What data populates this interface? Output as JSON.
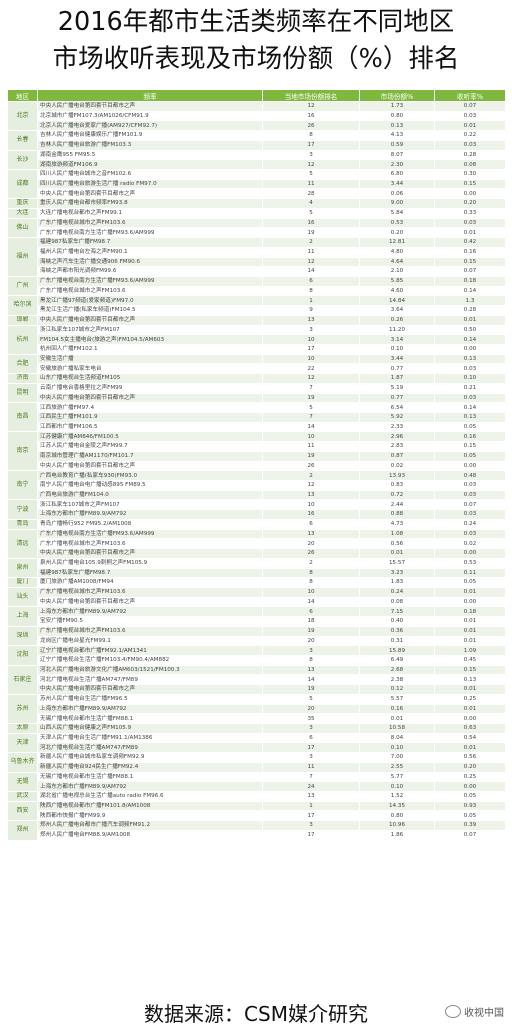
{
  "title": {
    "line1": "2016年都市生活类频率在不同地区",
    "line2": "市场收听表现及市场份额（%）排名"
  },
  "table": {
    "headers": [
      "地区",
      "频率",
      "当地市场份额排名",
      "市场份额%",
      "收听率%"
    ],
    "groups": [
      {
        "region": "北京",
        "rows": [
          [
            "中央人民广播电台第四套节目都市之声",
            "12",
            "1.73",
            "0.07"
          ],
          [
            "北京城市广播FM107.3/AM1026/CFM91.9",
            "16",
            "0.80",
            "0.03"
          ],
          [
            "北京人民广播电台爱家广播(AM927/CFM92.7)",
            "26",
            "0.13",
            "0.01"
          ]
        ]
      },
      {
        "region": "长春",
        "rows": [
          [
            "吉林人民广播电台健康娱乐广播FM101.9",
            "8",
            "4.13",
            "0.22"
          ],
          [
            "吉林人民广播电台旅游广播FM103.3",
            "17",
            "0.59",
            "0.03"
          ]
        ]
      },
      {
        "region": "长沙",
        "rows": [
          [
            "湖南金鹰955 FM95.5",
            "3",
            "8.07",
            "0.28"
          ],
          [
            "湖南旅游频道FM106.9",
            "12",
            "2.30",
            "0.08"
          ]
        ]
      },
      {
        "region": "成都",
        "rows": [
          [
            "四川人民广播电台城市之音FM102.6",
            "5",
            "6.80",
            "0.30"
          ],
          [
            "四川人民广播电台旅游生活广播 radio FM97.0",
            "11",
            "3.44",
            "0.15"
          ],
          [
            "中央人民广播电台第四套节目都市之声",
            "28",
            "0.06",
            "0.00"
          ]
        ]
      },
      {
        "region": "重庆",
        "rows": [
          [
            "重庆人民广播电台都市频率FM93.8",
            "4",
            "9.00",
            "0.20"
          ]
        ]
      },
      {
        "region": "大连",
        "rows": [
          [
            "大连广播电视台都市之声FM99.1",
            "5",
            "5.84",
            "0.33"
          ]
        ]
      },
      {
        "region": "佛山",
        "rows": [
          [
            "广东广播电视台城市之声FM103.6",
            "16",
            "0.53",
            "0.03"
          ],
          [
            "广东广播电视台南方生活广播FM93.6/AM999",
            "19",
            "0.20",
            "0.01"
          ]
        ]
      },
      {
        "region": "福州",
        "rows": [
          [
            "福建987私家车广播FM98.7",
            "2",
            "12.81",
            "0.42"
          ],
          [
            "福州人民广播电台左海之声FM90.1",
            "11",
            "4.80",
            "0.16"
          ],
          [
            "海峡之声汽车生活广播交通906 FM90.6",
            "12",
            "4.64",
            "0.15"
          ],
          [
            "海峡之声都市阳光调频FM99.6",
            "14",
            "2.10",
            "0.07"
          ]
        ]
      },
      {
        "region": "广州",
        "rows": [
          [
            "广东广播电视台南方生活广播FM93.6/AM999",
            "6",
            "5.85",
            "0.18"
          ],
          [
            "广东广播电视台城市之声FM103.6",
            "8",
            "4.60",
            "0.14"
          ]
        ]
      },
      {
        "region": "哈尔滨",
        "rows": [
          [
            "黑龙江广播97频道(爱家频道)FM97.0",
            "1",
            "14.84",
            "1.3"
          ],
          [
            "黑龙江生活广播(私家车频道)FM104.5",
            "9",
            "3.64",
            "0.28"
          ]
        ]
      },
      {
        "region": "邯郸",
        "rows": [
          [
            "中央人民广播电台第四套节目都市之声",
            "13",
            "0.26",
            "0.01"
          ]
        ]
      },
      {
        "region": "杭州",
        "rows": [
          [
            "浙江私家车107城市之声FM107",
            "3",
            "11.20",
            "0.50"
          ],
          [
            "FM104.5女主播电台(旅游之声)FM104.5/AM603",
            "10",
            "3.14",
            "0.14"
          ],
          [
            "杭州回人广播FM102.1",
            "17",
            "0.10",
            "0.00"
          ]
        ]
      },
      {
        "region": "合肥",
        "rows": [
          [
            "安徽生活广播",
            "10",
            "3.44",
            "0.13"
          ],
          [
            "安徽旅游广播私家车电台",
            "22",
            "0.77",
            "0.03"
          ]
        ]
      },
      {
        "region": "济南",
        "rows": [
          [
            "山东广播电视台生活频道FM105",
            "12",
            "1.87",
            "0.10"
          ]
        ]
      },
      {
        "region": "昆明",
        "rows": [
          [
            "云南广播电台香格里拉之声FM99",
            "7",
            "5.19",
            "0.21"
          ],
          [
            "中央人民广播电台第四套节目都市之声",
            "19",
            "0.77",
            "0.03"
          ]
        ]
      },
      {
        "region": "南昌",
        "rows": [
          [
            "江西旅游广播FM97.4",
            "5",
            "6.54",
            "0.14"
          ],
          [
            "江西民生广播FM101.9",
            "7",
            "5.92",
            "0.13"
          ],
          [
            "江西都市广播FM106.5",
            "14",
            "2.33",
            "0.05"
          ]
        ]
      },
      {
        "region": "南京",
        "rows": [
          [
            "江苏健康广播AM846/FM100.5",
            "10",
            "2.96",
            "0.16"
          ],
          [
            "江苏人民广播电台金陵之声FM99.7",
            "11",
            "2.83",
            "0.15"
          ],
          [
            "南京城市管理广播AM1170/FM101.7",
            "19",
            "0.87",
            "0.05"
          ],
          [
            "中央人民广播电台第四套节目都市之声",
            "26",
            "0.02",
            "0.00"
          ]
        ]
      },
      {
        "region": "南宁",
        "rows": [
          [
            "广西电台教育广播(私家车930)FM93.0",
            "2",
            "13.93",
            "0.48"
          ],
          [
            "南宁人民广播电台电广播动感895 FM89.5",
            "12",
            "0.83",
            "0.03"
          ],
          [
            "广西电台旅游广播FM104.0",
            "13",
            "0.72",
            "0.03"
          ]
        ]
      },
      {
        "region": "宁波",
        "rows": [
          [
            "浙江私家车107城市之声FM107",
            "10",
            "2.44",
            "0.07"
          ],
          [
            "上海东方都市广播FM89.9/AM792",
            "16",
            "0.88",
            "0.03"
          ]
        ]
      },
      {
        "region": "青岛",
        "rows": [
          [
            "青岛广播畅行952 FM95.2/AM1008",
            "6",
            "4.73",
            "0.24"
          ]
        ]
      },
      {
        "region": "清远",
        "rows": [
          [
            "广东广播电视台南方生活广播FM93.6/AM999",
            "13",
            "1.08",
            "0.03"
          ],
          [
            "广东广播电视台城市之声FM103.6",
            "20",
            "0.56",
            "0.02"
          ],
          [
            "中央人民广播电台第四套节目都市之声",
            "26",
            "0.01",
            "0.00"
          ]
        ]
      },
      {
        "region": "泉州",
        "rows": [
          [
            "泉州人民广播电台105.9刺桐之声FM105.9",
            "2",
            "15.57",
            "0.53"
          ],
          [
            "福建987私家车广播FM98.7",
            "8",
            "3.23",
            "0.11"
          ]
        ]
      },
      {
        "region": "厦门",
        "rows": [
          [
            "厦门旅游广播AM1008/FM94",
            "8",
            "1.83",
            "0.05"
          ]
        ]
      },
      {
        "region": "汕头",
        "rows": [
          [
            "广东广播电视台城市之声FM103.6",
            "10",
            "0.24",
            "0.01"
          ],
          [
            "中央人民广播电台第四套节目都市之声",
            "14",
            "0.08",
            "0.00"
          ]
        ]
      },
      {
        "region": "上海",
        "rows": [
          [
            "上海东方都市广播FM89.9/AM792",
            "6",
            "7.15",
            "0.18"
          ],
          [
            "宝安广播FM90.5",
            "18",
            "0.40",
            "0.01"
          ]
        ]
      },
      {
        "region": "深圳",
        "rows": [
          [
            "广东广播电视台城市之声FM103.6",
            "19",
            "0.36",
            "0.01"
          ],
          [
            "龙岗区广播电台星光FM99.1",
            "20",
            "0.31",
            "0.01"
          ]
        ]
      },
      {
        "region": "沈阳",
        "rows": [
          [
            "辽宁广播电视台都市广播FM92.1/AM1341",
            "3",
            "15.89",
            "1.09"
          ],
          [
            "辽宁广播电视台生活广播FM103.4/FM90.4/AM882",
            "8",
            "6.49",
            "0.45"
          ]
        ]
      },
      {
        "region": "石家庄",
        "rows": [
          [
            "河北人民广播电台旅游文化广播AM603/1521/FM100.3",
            "13",
            "2.68",
            "0.15"
          ],
          [
            "河北广播电视台生活广播AM747/FM89",
            "14",
            "2.38",
            "0.13"
          ],
          [
            "中央人民广播电台第四套节目都市之声",
            "19",
            "0.12",
            "0.01"
          ]
        ]
      },
      {
        "region": "苏州",
        "rows": [
          [
            "苏州人民广播电台生活广播FM96.5",
            "5",
            "5.57",
            "0.25"
          ],
          [
            "上海东方都市广播FM89.9/AM792",
            "20",
            "0.16",
            "0.01"
          ],
          [
            "无锡广播电视台都市生活广播FM88.1",
            "35",
            "0.01",
            "0.00"
          ]
        ]
      },
      {
        "region": "太原",
        "rows": [
          [
            "山西人民广播电台健康之声FM105.9",
            "3",
            "10.58",
            "0.63"
          ]
        ]
      },
      {
        "region": "天津",
        "rows": [
          [
            "天津人民广播电台生活广播FM91.1/AM1386",
            "6",
            "8.04",
            "0.54"
          ],
          [
            "河北广播电视台生活广播AM747/FM89",
            "17",
            "0.10",
            "0.01"
          ]
        ]
      },
      {
        "region": "乌鲁木齐",
        "rows": [
          [
            "新疆人民广播电台城市私家车调频FM92.9",
            "3",
            "7.00",
            "0.56"
          ],
          [
            "新疆人民广播电台924民生广播FM92.4",
            "11",
            "2.55",
            "0.20"
          ]
        ]
      },
      {
        "region": "无锡",
        "rows": [
          [
            "无锡广播电视台都市生活广播FM88.1",
            "7",
            "5.77",
            "0.25"
          ],
          [
            "上海东方都市广播FM89.9/AM792",
            "24",
            "0.10",
            "0.00"
          ]
        ]
      },
      {
        "region": "武汉",
        "rows": [
          [
            "湖北省广播电视总台生活广播auto radio FM96.6",
            "13",
            "1.52",
            "0.05"
          ]
        ]
      },
      {
        "region": "西安",
        "rows": [
          [
            "陕西广播电视台都市广播FM101.8/AM1008",
            "1",
            "14.35",
            "0.93"
          ],
          [
            "陕西都市快报广播FM99.9",
            "17",
            "0.80",
            "0.05"
          ]
        ]
      },
      {
        "region": "郑州",
        "rows": [
          [
            "郑州人民广播电台都市广播汽车调频FM91.2",
            "3",
            "10.96",
            "0.39"
          ],
          [
            "郑州人民广播电台FM88.9/AM1008",
            "17",
            "1.86",
            "0.07"
          ]
        ]
      }
    ]
  },
  "footer": {
    "source": "数据来源：CSM媒介研究",
    "logo_text": "收视中国",
    "logo_icon": "wechat-icon"
  }
}
